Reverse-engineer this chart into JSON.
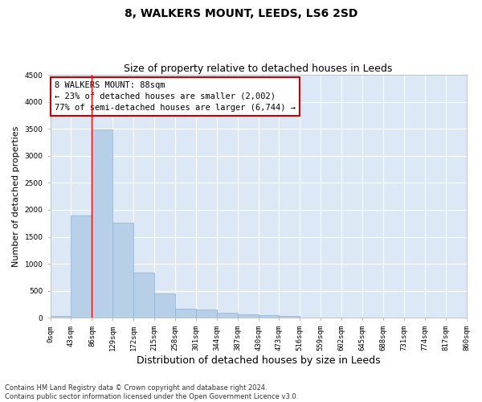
{
  "title": "8, WALKERS MOUNT, LEEDS, LS6 2SD",
  "subtitle": "Size of property relative to detached houses in Leeds",
  "xlabel": "Distribution of detached houses by size in Leeds",
  "ylabel": "Number of detached properties",
  "bar_color": "#b8cfe8",
  "bar_edge_color": "#8ab0d4",
  "background_color": "#dce8f5",
  "fig_background": "#ffffff",
  "tick_labels": [
    "0sqm",
    "43sqm",
    "86sqm",
    "129sqm",
    "172sqm",
    "215sqm",
    "258sqm",
    "301sqm",
    "344sqm",
    "387sqm",
    "430sqm",
    "473sqm",
    "516sqm",
    "559sqm",
    "602sqm",
    "645sqm",
    "688sqm",
    "731sqm",
    "774sqm",
    "817sqm",
    "860sqm"
  ],
  "bar_values": [
    35,
    1900,
    3490,
    1760,
    840,
    450,
    165,
    155,
    90,
    55,
    40,
    35,
    0,
    0,
    0,
    0,
    0,
    0,
    0,
    0
  ],
  "ylim": [
    0,
    4500
  ],
  "yticks": [
    0,
    500,
    1000,
    1500,
    2000,
    2500,
    3000,
    3500,
    4000,
    4500
  ],
  "property_line_x": 2,
  "annotation_title": "8 WALKERS MOUNT: 88sqm",
  "annotation_line1": "← 23% of detached houses are smaller (2,002)",
  "annotation_line2": "77% of semi-detached houses are larger (6,744) →",
  "annotation_box_color": "#ffffff",
  "annotation_box_edge": "#cc0000",
  "footer_line1": "Contains HM Land Registry data © Crown copyright and database right 2024.",
  "footer_line2": "Contains public sector information licensed under the Open Government Licence v3.0.",
  "grid_color": "#ffffff",
  "title_fontsize": 10,
  "subtitle_fontsize": 9,
  "axis_label_fontsize": 8,
  "tick_fontsize": 6.5,
  "annotation_fontsize": 7.5,
  "footer_fontsize": 6
}
